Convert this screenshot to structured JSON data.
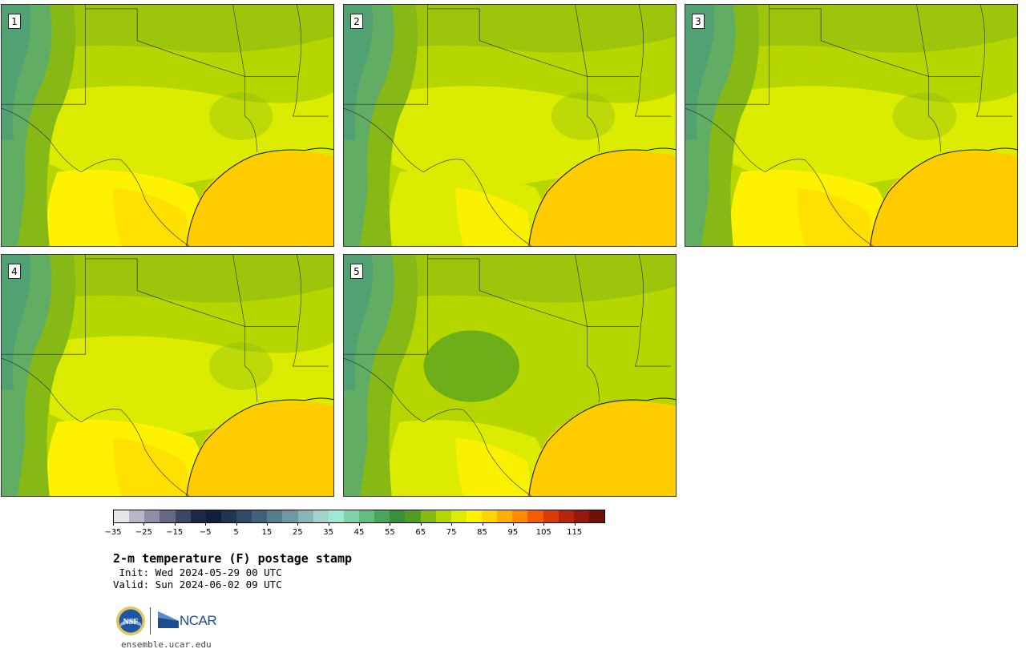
{
  "panels": [
    {
      "label": "1"
    },
    {
      "label": "2"
    },
    {
      "label": "3"
    },
    {
      "label": "4"
    },
    {
      "label": "5"
    }
  ],
  "colorbar": {
    "colors": [
      "#e6e6ee",
      "#b7b7c8",
      "#8d8fa4",
      "#636a84",
      "#3c4665",
      "#1c2848",
      "#10203c",
      "#1f3552",
      "#2e4a66",
      "#3f6278",
      "#557d8c",
      "#6d98a0",
      "#87b6b6",
      "#a3d3cc",
      "#9fe8d8",
      "#7fd3a8",
      "#63bd80",
      "#4aa65c",
      "#3a8f3c",
      "#4f9e22",
      "#86b816",
      "#b6d600",
      "#dcec00",
      "#fff200",
      "#ffd600",
      "#ffb000",
      "#ff8a00",
      "#f25c05",
      "#d83a08",
      "#b8240c",
      "#94180c",
      "#701008"
    ],
    "ticks": [
      "−35",
      "−25",
      "−15",
      "−5",
      "5",
      "15",
      "25",
      "35",
      "45",
      "55",
      "65",
      "75",
      "85",
      "95",
      "105",
      "115"
    ]
  },
  "title": "2-m temperature (F) postage stamp",
  "init": " Init: Wed 2024-05-29 00 UTC",
  "valid": "Valid: Sun 2024-06-02 09 UTC",
  "logos": {
    "nsf": "NSF",
    "ncar": "NCAR"
  },
  "site": "ensemble.ucar.edu",
  "map_colors": {
    "gulf": "#ffcc00",
    "hot": "#ffdd00",
    "warm_yellow": "#fff200",
    "yellow_green": "#dcec00",
    "light_green": "#b6d600",
    "green": "#86b816",
    "dark_green": "#4f9e22",
    "teal_green": "#5aaa72",
    "cold_teal": "#7fc3a5"
  }
}
